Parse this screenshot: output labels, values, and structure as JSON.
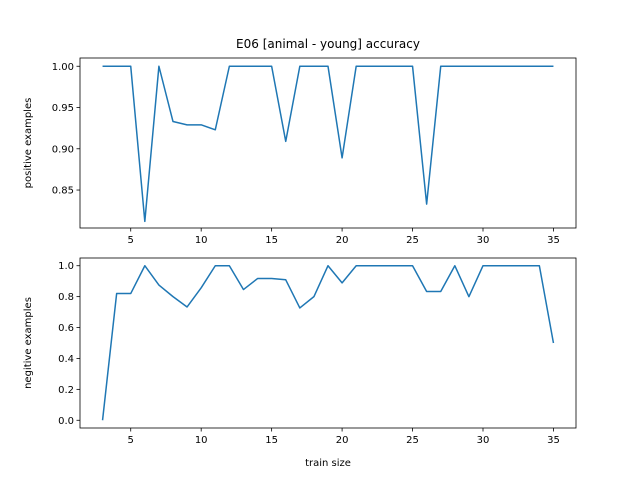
{
  "figure": {
    "title": "E06 [animal - young] accuracy",
    "line_color": "#1f77b4"
  },
  "chart_data": [
    {
      "type": "line",
      "title": "E06 [animal - young] accuracy",
      "xlabel": "",
      "ylabel": "positive examples",
      "xlim": [
        1.4,
        36.6
      ],
      "ylim": [
        0.804,
        1.01
      ],
      "xticks": [
        "5",
        "10",
        "15",
        "20",
        "25",
        "30",
        "35"
      ],
      "yticks": [
        "0.85",
        "0.90",
        "0.95",
        "1.00"
      ],
      "grid": false,
      "series": [
        {
          "x": [
            3,
            4,
            5,
            6,
            7,
            8,
            9,
            10,
            11,
            12,
            13,
            14,
            15,
            16,
            17,
            18,
            19,
            20,
            21,
            22,
            23,
            24,
            25,
            26,
            27,
            28,
            29,
            30,
            31,
            32,
            33,
            34,
            35
          ],
          "values": [
            1.0,
            1.0,
            1.0,
            0.812,
            1.0,
            0.933,
            0.929,
            0.929,
            0.923,
            1.0,
            1.0,
            1.0,
            1.0,
            0.909,
            1.0,
            1.0,
            1.0,
            0.889,
            1.0,
            1.0,
            1.0,
            1.0,
            1.0,
            0.833,
            1.0,
            1.0,
            1.0,
            1.0,
            1.0,
            1.0,
            1.0,
            1.0,
            1.0
          ]
        }
      ]
    },
    {
      "type": "line",
      "title": "",
      "xlabel": "train size",
      "ylabel": "negitive examples",
      "xlim": [
        1.4,
        36.6
      ],
      "ylim": [
        -0.05,
        1.05
      ],
      "xticks": [
        "5",
        "10",
        "15",
        "20",
        "25",
        "30",
        "35"
      ],
      "yticks": [
        "0.0",
        "0.2",
        "0.4",
        "0.6",
        "0.8",
        "1.0"
      ],
      "grid": false,
      "series": [
        {
          "x": [
            3,
            4,
            5,
            6,
            7,
            8,
            9,
            10,
            11,
            12,
            13,
            14,
            15,
            16,
            17,
            18,
            19,
            20,
            21,
            22,
            23,
            24,
            25,
            26,
            27,
            28,
            29,
            30,
            31,
            32,
            33,
            34,
            35
          ],
          "values": [
            0.0,
            0.82,
            0.82,
            1.0,
            0.875,
            0.8,
            0.733,
            0.857,
            1.0,
            1.0,
            0.846,
            0.917,
            0.917,
            0.909,
            0.727,
            0.8,
            1.0,
            0.889,
            1.0,
            1.0,
            1.0,
            1.0,
            1.0,
            0.833,
            0.833,
            1.0,
            0.8,
            1.0,
            1.0,
            1.0,
            1.0,
            1.0,
            0.5
          ]
        }
      ]
    }
  ]
}
